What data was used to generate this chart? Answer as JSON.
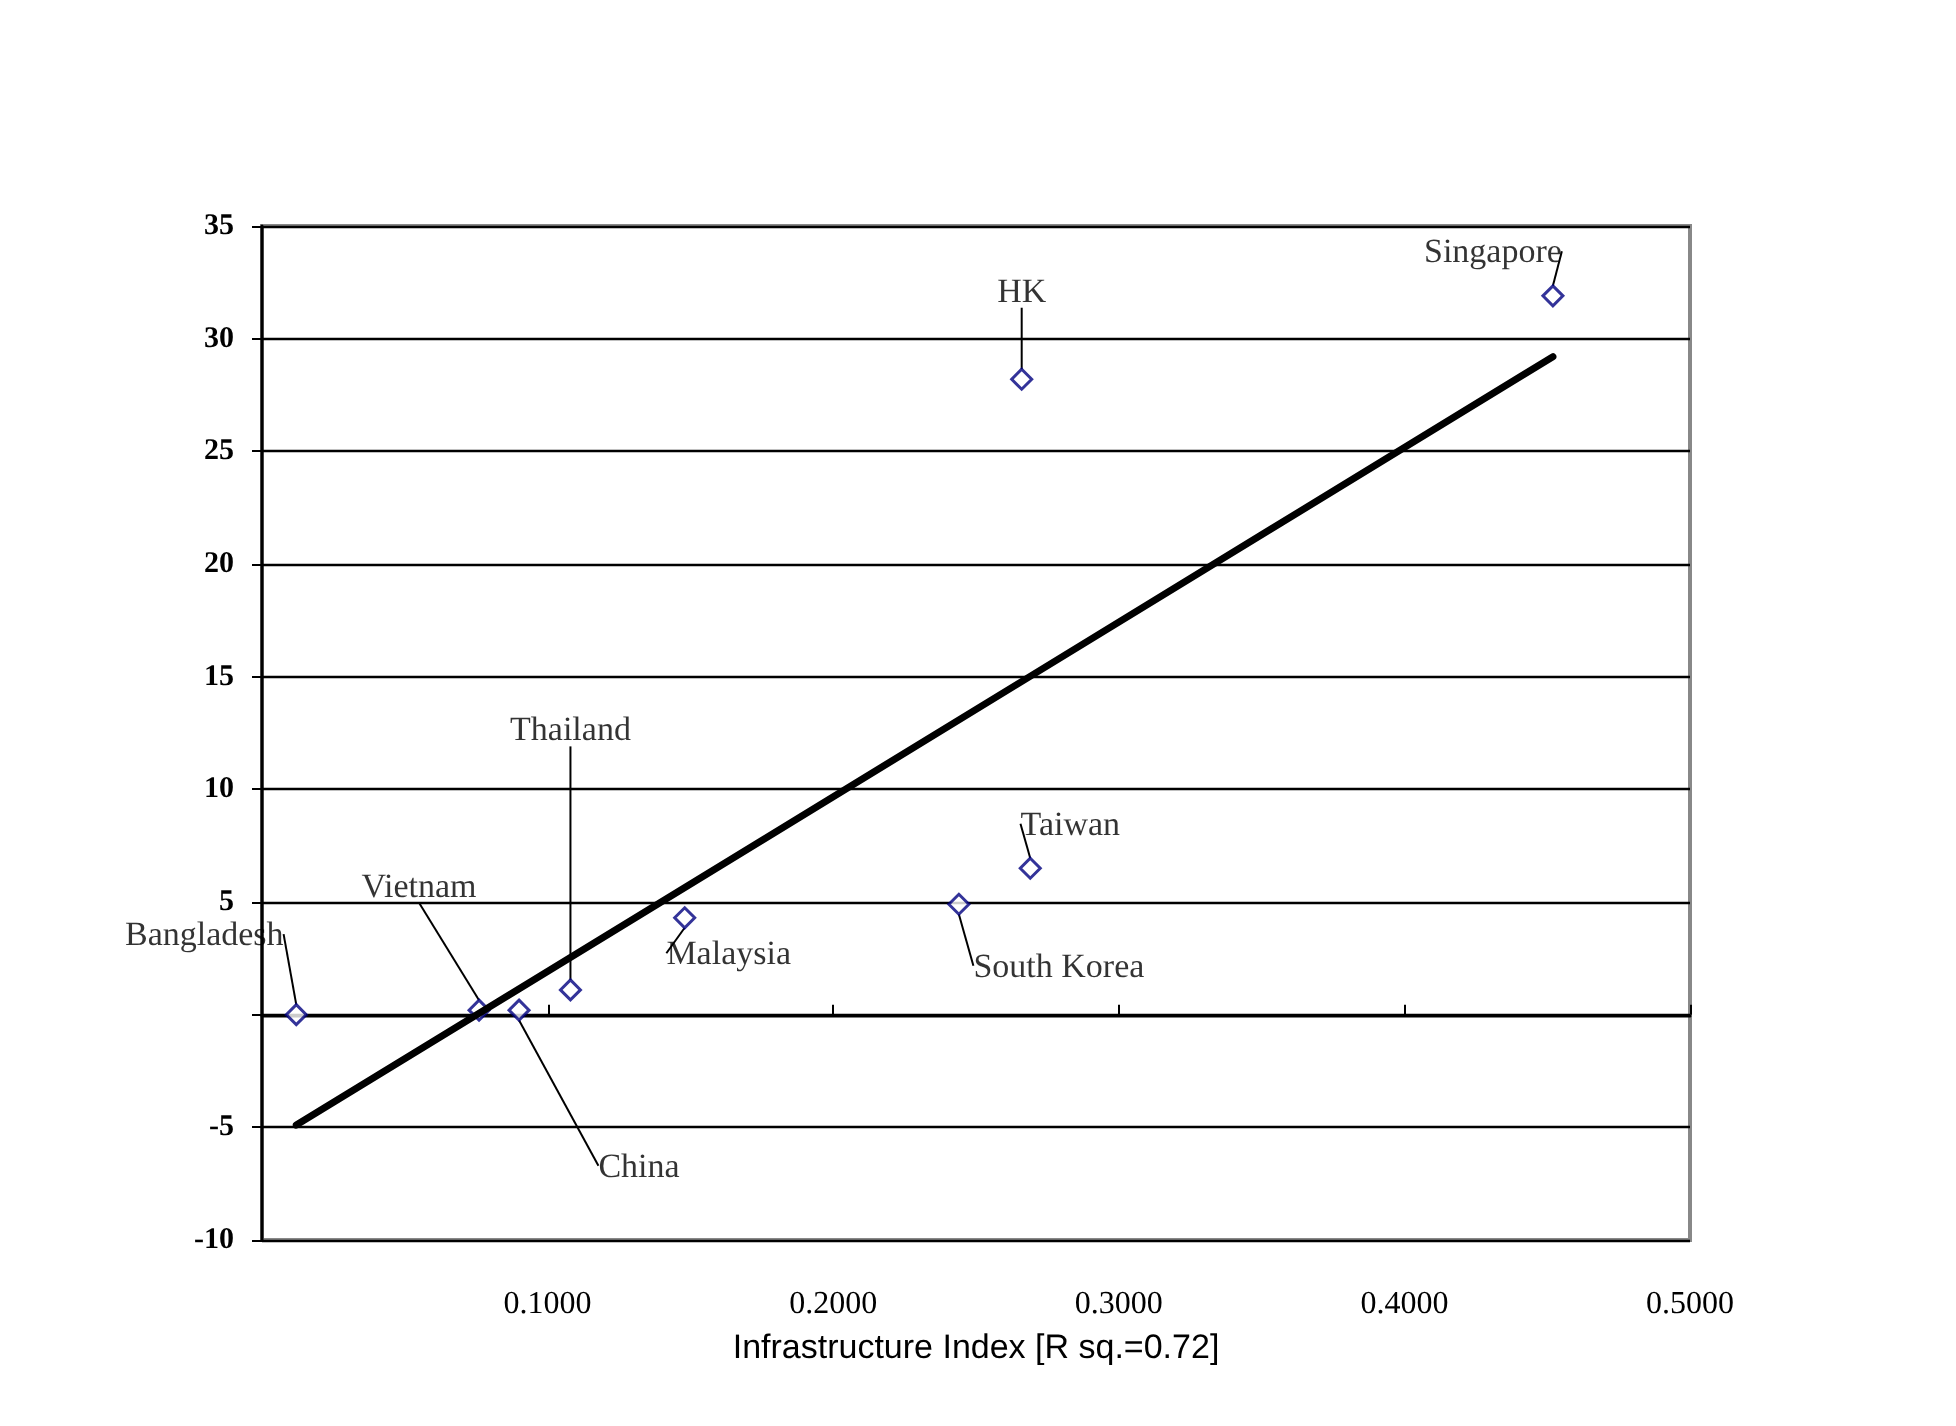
{
  "chart_data": {
    "type": "scatter",
    "xlabel": "Infrastructure Index [R sq.=0.72]",
    "xlim": [
      0,
      0.5
    ],
    "xticks": [
      {
        "value": 0.1,
        "label": "0.1000"
      },
      {
        "value": 0.2,
        "label": "0.2000"
      },
      {
        "value": 0.3,
        "label": "0.3000"
      },
      {
        "value": 0.4,
        "label": "0.4000"
      },
      {
        "value": 0.5,
        "label": "0.5000"
      }
    ],
    "ylim": [
      -10,
      35
    ],
    "yticks": [
      -10,
      -5,
      {
        "value": 0,
        "label": null
      },
      5,
      10,
      15,
      20,
      25,
      30,
      35
    ],
    "grid": "y",
    "series": [
      {
        "color": "#000080",
        "marker": "diamond",
        "x": [
          0.012,
          0.076,
          0.09,
          0.108,
          0.148,
          0.244,
          0.269,
          0.266,
          0.452
        ],
        "values": [
          0,
          0.2,
          0.2,
          1.1,
          4.3,
          4.9,
          6.5,
          28.2,
          31.9
        ],
        "value_labels": [
          "Bangladesh",
          "Vietnam",
          "China",
          "Thailand",
          "Malaysia",
          "South Korea",
          "Taiwan",
          "HK",
          "Singapore"
        ]
      },
      {
        "type": "line",
        "color": "#000000",
        "marker": "none",
        "line_style": "solid",
        "x": [
          0.012,
          0.452
        ],
        "values": [
          -4.9,
          29.2
        ]
      }
    ]
  }
}
